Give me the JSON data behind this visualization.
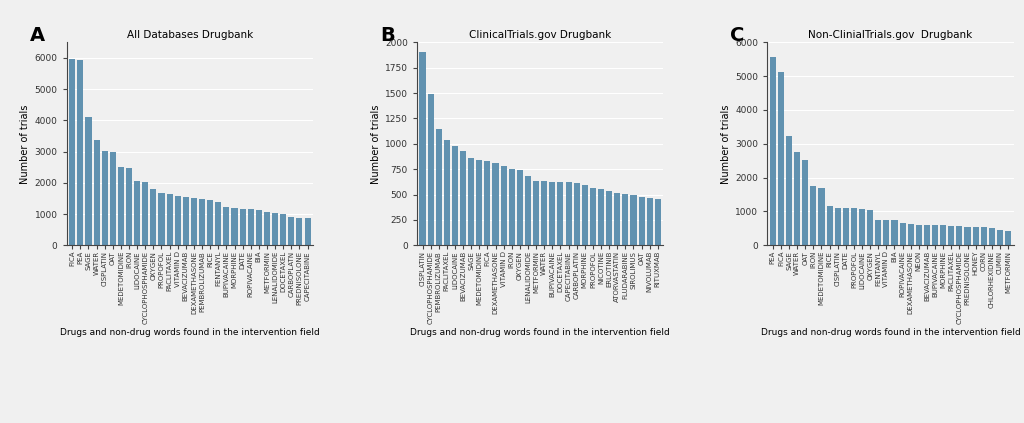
{
  "A": {
    "title": "All Databases Drugbank",
    "categories": [
      "FICA",
      "PEA",
      "SAGE",
      "WATER",
      "CISPLATIN",
      "OAT",
      "MEDETOMIDINE",
      "IRON",
      "LIDOCAINE",
      "CYCLOPHOSPHAMIDE",
      "OXYGEN",
      "PROPOFOL",
      "PACLITAXEL",
      "VITAMIN D",
      "BEVACIZUMAB",
      "DEXAMETHASONE",
      "PEMBROLIZUMAB",
      "RICE",
      "FENTANYL",
      "BUPIVACAINE",
      "MORPHINE",
      "DATE",
      "ROPIVACAINE",
      "BIA",
      "METFORMIN",
      "LENALIDOMIDE",
      "DOCETAXEL",
      "CARBOPLATN",
      "PREDNISOLONE",
      "CAPECITABINE"
    ],
    "values": [
      5950,
      5920,
      4100,
      3380,
      3020,
      3000,
      2510,
      2460,
      2070,
      2020,
      1790,
      1680,
      1640,
      1570,
      1550,
      1510,
      1490,
      1450,
      1380,
      1230,
      1180,
      1170,
      1160,
      1130,
      1080,
      1050,
      990,
      910,
      890,
      875
    ]
  },
  "B": {
    "title": "ClinicalTrials.gov Drugbank",
    "categories": [
      "CISPLATIN",
      "CYCLOPHOSPHAMIDE",
      "PEMBROLIZUMAB",
      "PACLITAXEL",
      "LIDOCAINE",
      "BEVACIZUMAB",
      "SAGE",
      "MEDETOMIDINE",
      "FICA",
      "DEXAMETHASONE",
      "VITAMIN D",
      "IRON",
      "OXYGEN",
      "LENALIDOMIDE",
      "METFORMIN",
      "WATER",
      "BUPIVACAINE",
      "DOCETAXEL",
      "CAPECITABINE",
      "CARBOPLATIN",
      "MORPHINE",
      "PROPOFOL",
      "NICOTINE",
      "ERLOTINIB",
      "ATORVASTATIN",
      "FLUDARABINE",
      "SIROLIMUS",
      "OAT",
      "NIVOLUMAB",
      "RITUXMAB"
    ],
    "values": [
      1900,
      1490,
      1145,
      1040,
      975,
      930,
      860,
      845,
      830,
      810,
      780,
      750,
      740,
      680,
      635,
      630,
      625,
      620,
      620,
      615,
      595,
      565,
      555,
      535,
      520,
      505,
      500,
      480,
      470,
      460
    ]
  },
  "C": {
    "title": "Non-ClinialTrials.gov  Drugbank",
    "categories": [
      "PEA",
      "FICA",
      "SAGE",
      "WATER",
      "OAT",
      "IRON",
      "MEDETOMIDINE",
      "RICE",
      "CISPLATIN",
      "DATE",
      "PROPOFOL",
      "LIDOCAINE",
      "OXYGEN",
      "FENTANYL",
      "VITAMIN D",
      "BIA",
      "ROPIVACAINE",
      "DEXAMETHASONE",
      "NEON",
      "BEVACIZUMAB",
      "BUPIVACAINE",
      "MORPHINE",
      "PACLITAXEL",
      "CYCLOPHOSPHAMIDE",
      "PREDNISOLONE",
      "HONEY",
      "CORN",
      "CHLORHEXIDINE",
      "CUMIN",
      "METFORMIN"
    ],
    "values": [
      5570,
      5110,
      3230,
      2770,
      2510,
      1740,
      1680,
      1160,
      1110,
      1100,
      1100,
      1070,
      1040,
      760,
      760,
      755,
      650,
      640,
      615,
      605,
      600,
      595,
      585,
      580,
      555,
      540,
      535,
      520,
      450,
      430
    ]
  },
  "bar_color": "#6192b0",
  "ylabel": "Number of trials",
  "xlabel": "Drugs and non-drug words found in the intervention field",
  "panel_labels": [
    "A",
    "B",
    "C"
  ],
  "ylim_A": [
    0,
    6500
  ],
  "ylim_B": [
    0,
    2000
  ],
  "ylim_C": [
    0,
    6000
  ],
  "yticks_A": [
    0,
    1000,
    2000,
    3000,
    4000,
    5000,
    6000
  ],
  "yticks_B": [
    0,
    250,
    500,
    750,
    1000,
    1250,
    1500,
    1750,
    2000
  ],
  "yticks_C": [
    0,
    1000,
    2000,
    3000,
    4000,
    5000,
    6000
  ],
  "bg_color": "#f0f0f0"
}
